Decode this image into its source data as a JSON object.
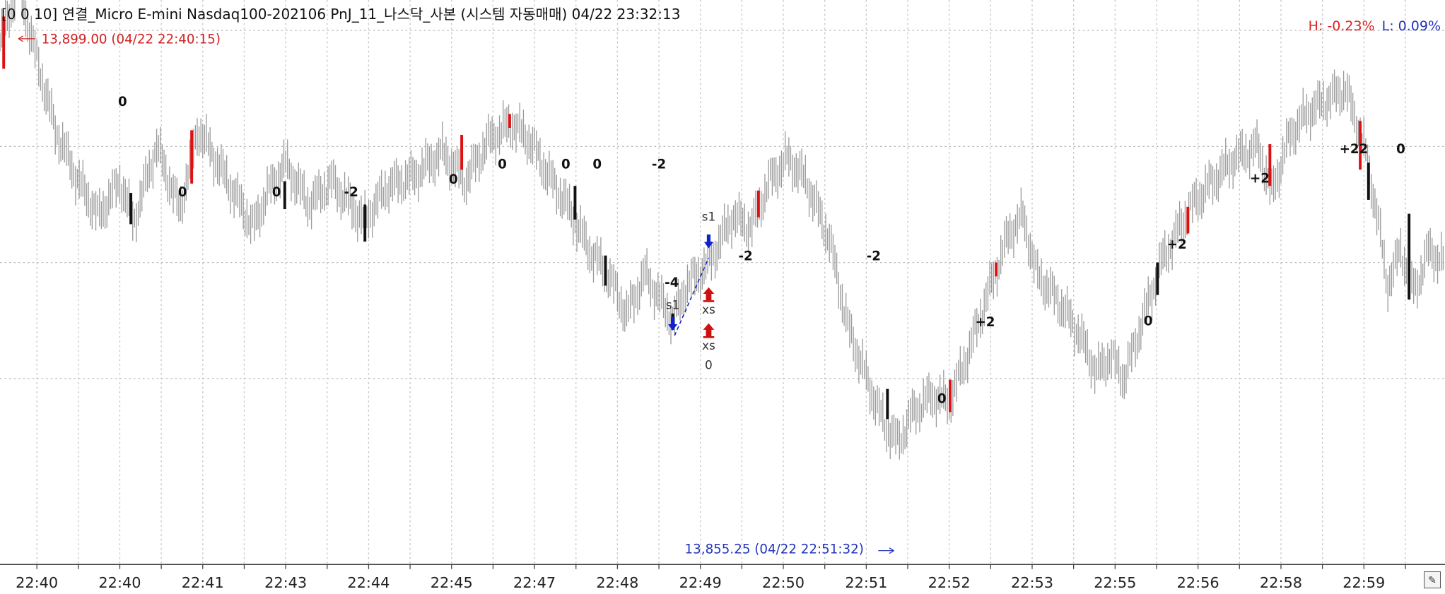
{
  "window": {
    "title": "[0 0 10]  연결_Micro E-mini Nasdaq100-202106 PnJ_11_나스닥_사본 (시스템 자동매매) 04/22 23:32:13",
    "high_pct": "H: -0.23%",
    "low_pct": "L: 0.09%",
    "edit_icon": "pencil-icon"
  },
  "colors": {
    "price": "#9a9a9a",
    "long": "#111111",
    "short": "#dd1111",
    "sell_signal": "#1122cc",
    "exit": "#cc1111",
    "high_label": "#d22222",
    "low_label": "#2233bb"
  },
  "chart_data": {
    "type": "line",
    "grid": true,
    "y_visible_range": [
      13852,
      13902
    ],
    "hline_values": [
      13865,
      13875,
      13885,
      13895
    ],
    "x_tick_labels": [
      "22:40",
      "22:40",
      "22:41",
      "22:43",
      "22:44",
      "22:45",
      "22:47",
      "22:48",
      "22:49",
      "22:50",
      "22:51",
      "22:52",
      "22:53",
      "22:55",
      "22:56",
      "22:58",
      "22:59"
    ],
    "price_waypoints": [
      [
        0,
        13894.0
      ],
      [
        20,
        13899.0
      ],
      [
        40,
        13892.5
      ],
      [
        60,
        13886.5
      ],
      [
        85,
        13882.0
      ],
      [
        107,
        13879.0
      ],
      [
        130,
        13882.0
      ],
      [
        145,
        13878.5
      ],
      [
        170,
        13885.0
      ],
      [
        195,
        13879.5
      ],
      [
        215,
        13886.5
      ],
      [
        240,
        13883.0
      ],
      [
        275,
        13878.0
      ],
      [
        290,
        13881.0
      ],
      [
        310,
        13883.5
      ],
      [
        335,
        13880.0
      ],
      [
        360,
        13882.0
      ],
      [
        395,
        13878.5
      ],
      [
        420,
        13881.5
      ],
      [
        450,
        13882.5
      ],
      [
        480,
        13884.5
      ],
      [
        505,
        13882.0
      ],
      [
        530,
        13885.5
      ],
      [
        555,
        13887.0
      ],
      [
        575,
        13885.5
      ],
      [
        595,
        13882.5
      ],
      [
        615,
        13880.0
      ],
      [
        640,
        13876.0
      ],
      [
        660,
        13874.0
      ],
      [
        680,
        13870.5
      ],
      [
        700,
        13874.0
      ],
      [
        730,
        13870.0
      ],
      [
        745,
        13873.0
      ],
      [
        770,
        13875.0
      ],
      [
        795,
        13879.0
      ],
      [
        815,
        13878.0
      ],
      [
        835,
        13882.0
      ],
      [
        855,
        13884.0
      ],
      [
        875,
        13882.0
      ],
      [
        900,
        13877.0
      ],
      [
        920,
        13869.5
      ],
      [
        945,
        13864.0
      ],
      [
        960,
        13861.0
      ],
      [
        975,
        13859.5
      ],
      [
        990,
        13862.0
      ],
      [
        1010,
        13863.5
      ],
      [
        1030,
        13863.0
      ],
      [
        1050,
        13867.0
      ],
      [
        1075,
        13873.0
      ],
      [
        1095,
        13877.5
      ],
      [
        1110,
        13879.0
      ],
      [
        1125,
        13874.0
      ],
      [
        1150,
        13871.5
      ],
      [
        1170,
        13869.0
      ],
      [
        1190,
        13865.5
      ],
      [
        1205,
        13867.0
      ],
      [
        1220,
        13865.0
      ],
      [
        1240,
        13870.0
      ],
      [
        1260,
        13875.0
      ],
      [
        1290,
        13879.5
      ],
      [
        1310,
        13881.5
      ],
      [
        1340,
        13884.0
      ],
      [
        1365,
        13885.0
      ],
      [
        1380,
        13881.0
      ],
      [
        1400,
        13886.0
      ],
      [
        1420,
        13888.0
      ],
      [
        1440,
        13889.0
      ],
      [
        1460,
        13890.0
      ],
      [
        1480,
        13885.0
      ],
      [
        1495,
        13879.0
      ],
      [
        1505,
        13873.0
      ],
      [
        1520,
        13876.0
      ],
      [
        1535,
        13872.5
      ],
      [
        1550,
        13876.0
      ],
      [
        1568,
        13875.0
      ]
    ],
    "high": {
      "label": "13,899.00 (04/22 22:40:15)",
      "value": 13899.0,
      "x": 20
    },
    "low": {
      "label": "13,855.25 (04/22 22:51:32)",
      "value": 13855.25,
      "x": 970
    },
    "position_bars": [
      {
        "x": 4,
        "color": "short",
        "y1": 13896.2,
        "y2": 13891.7
      },
      {
        "x": 142,
        "color": "long",
        "y1": 13881.0,
        "y2": 13878.3
      },
      {
        "x": 208,
        "color": "short",
        "y1": 13886.4,
        "y2": 13881.8
      },
      {
        "x": 309,
        "color": "long",
        "y1": 13882.0,
        "y2": 13879.6
      },
      {
        "x": 396,
        "color": "long",
        "y1": 13880.0,
        "y2": 13876.8
      },
      {
        "x": 501,
        "color": "short",
        "y1": 13886.0,
        "y2": 13883.0
      },
      {
        "x": 553,
        "color": "short",
        "y1": 13887.8,
        "y2": 13886.6
      },
      {
        "x": 624,
        "color": "long",
        "y1": 13881.6,
        "y2": 13878.7
      },
      {
        "x": 657,
        "color": "long",
        "y1": 13875.6,
        "y2": 13873.0
      },
      {
        "x": 730,
        "color": "long",
        "y1": 13870.6,
        "y2": 13869.2
      },
      {
        "x": 823,
        "color": "short",
        "y1": 13881.2,
        "y2": 13878.9
      },
      {
        "x": 963,
        "color": "long",
        "y1": 13864.1,
        "y2": 13861.5
      },
      {
        "x": 1031,
        "color": "short",
        "y1": 13864.9,
        "y2": 13862.1
      },
      {
        "x": 1081,
        "color": "short",
        "y1": 13875.0,
        "y2": 13873.8
      },
      {
        "x": 1256,
        "color": "long",
        "y1": 13875.0,
        "y2": 13872.2
      },
      {
        "x": 1289,
        "color": "short",
        "y1": 13879.8,
        "y2": 13877.5
      },
      {
        "x": 1378,
        "color": "short",
        "y1": 13885.2,
        "y2": 13881.6
      },
      {
        "x": 1476,
        "color": "short",
        "y1": 13887.2,
        "y2": 13883.0
      },
      {
        "x": 1485,
        "color": "long",
        "y1": 13883.6,
        "y2": 13880.4
      },
      {
        "x": 1529,
        "color": "long",
        "y1": 13879.2,
        "y2": 13871.8
      }
    ],
    "position_labels": [
      {
        "text": "0",
        "x": 133,
        "y": 13888.5
      },
      {
        "text": "0",
        "x": 198,
        "y": 13880.7
      },
      {
        "text": "0",
        "x": 300,
        "y": 13880.7
      },
      {
        "text": "-2",
        "x": 381,
        "y": 13880.7
      },
      {
        "text": "0",
        "x": 492,
        "y": 13881.8
      },
      {
        "text": "0",
        "x": 545,
        "y": 13883.1
      },
      {
        "text": "0",
        "x": 614,
        "y": 13883.1
      },
      {
        "text": "0",
        "x": 648,
        "y": 13883.1
      },
      {
        "text": "-2",
        "x": 715,
        "y": 13883.1
      },
      {
        "text": "-4",
        "x": 729,
        "y": 13872.9
      },
      {
        "text": "-2",
        "x": 809,
        "y": 13875.2
      },
      {
        "text": "-2",
        "x": 948,
        "y": 13875.2
      },
      {
        "text": "+2",
        "x": 1069,
        "y": 13869.5
      },
      {
        "text": "0",
        "x": 1022,
        "y": 13862.9
      },
      {
        "text": "0",
        "x": 1246,
        "y": 13869.6
      },
      {
        "text": "+2",
        "x": 1277,
        "y": 13876.2
      },
      {
        "text": "+2",
        "x": 1367,
        "y": 13881.9
      },
      {
        "text": "+22",
        "x": 1469,
        "y": 13884.4
      },
      {
        "text": "0",
        "x": 1520,
        "y": 13884.4
      }
    ],
    "signals": [
      {
        "type": "sell",
        "label": "s1",
        "x": 730,
        "y_label": 13871.0,
        "y_arrow": 13869.2
      },
      {
        "type": "sell",
        "label": "s1",
        "x": 769,
        "y_label": 13878.6,
        "y_arrow": 13876.3
      },
      {
        "type": "exit",
        "label": "xs",
        "x": 769,
        "y_label": 13870.6,
        "y_arrow": 13872.3
      },
      {
        "type": "exit",
        "label": "xs",
        "x": 769,
        "y_label": 13867.5,
        "y_arrow": 13869.2
      }
    ],
    "trade_line": {
      "x1": 732,
      "y1": 13868.7,
      "x2": 769,
      "y2": 13875.4
    },
    "trade_end_label": {
      "text": "0",
      "x": 769,
      "y": 13865.8
    }
  }
}
